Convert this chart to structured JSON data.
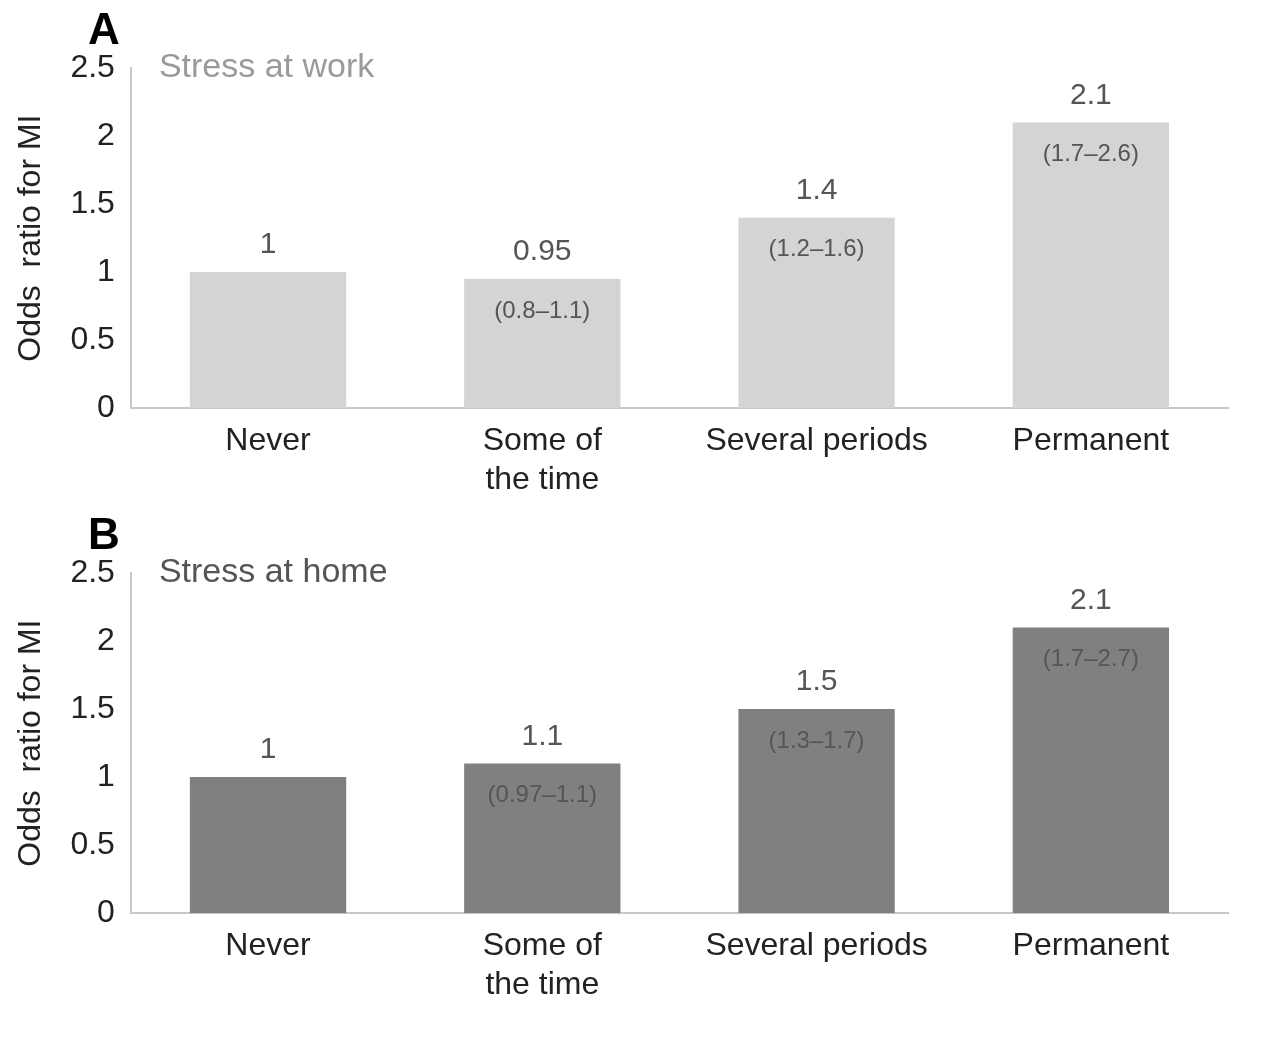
{
  "chart_data": [
    {
      "type": "bar",
      "title": "Stress at work",
      "ylabel": "Odds  ratio for MI",
      "categories": [
        "Never",
        "Some of\nthe time",
        "Several periods",
        "Permanent"
      ],
      "values": [
        1,
        0.95,
        1.4,
        2.1
      ],
      "color": "#d4d4d4",
      "ylim": [
        0,
        2.5
      ],
      "yticks": [
        0,
        0.5,
        1,
        1.5,
        2,
        2.5
      ],
      "data_labels": true,
      "grid": false,
      "legend": false,
      "annotations": [
        "A",
        {
          "text": "(0.8–1.1)",
          "x": "Some of\nthe time",
          "y": 0.95
        },
        {
          "text": "(1.2–1.6)",
          "x": "Several periods",
          "y": 1.4
        },
        {
          "text": "(1.7–2.6)",
          "x": "Permanent",
          "y": 2.1
        }
      ]
    },
    {
      "type": "bar",
      "title": "Stress at home",
      "ylabel": "Odds  ratio for MI",
      "categories": [
        "Never",
        "Some of\nthe time",
        "Several periods",
        "Permanent"
      ],
      "values": [
        1,
        1.1,
        1.5,
        2.1
      ],
      "color": "#808080",
      "ylim": [
        0,
        2.5
      ],
      "yticks": [
        0,
        0.5,
        1,
        1.5,
        2,
        2.5
      ],
      "data_labels": true,
      "grid": false,
      "legend": false,
      "annotations": [
        "B",
        {
          "text": "(0.97–1.1)",
          "x": "Some of\nthe time",
          "y": 1.1
        },
        {
          "text": "(1.3–1.7)",
          "x": "Several periods",
          "y": 1.5
        },
        {
          "text": "(1.7–2.7)",
          "x": "Permanent",
          "y": 2.1
        }
      ]
    }
  ]
}
